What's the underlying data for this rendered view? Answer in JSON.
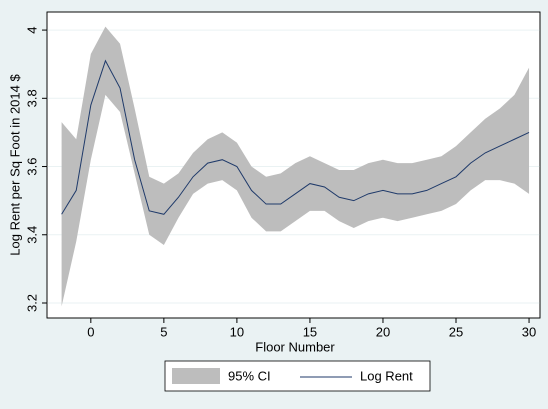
{
  "chart_data": {
    "type": "line",
    "xlabel": "Floor Number",
    "ylabel": "Log Rent per Sq Foot in 2014 $",
    "x": [
      -2,
      -1,
      0,
      1,
      2,
      3,
      4,
      5,
      6,
      7,
      8,
      9,
      10,
      11,
      12,
      13,
      14,
      15,
      16,
      17,
      18,
      19,
      20,
      21,
      22,
      23,
      24,
      25,
      26,
      27,
      28,
      29,
      30
    ],
    "series": [
      {
        "name": "95% CI",
        "type": "area",
        "color": "#bdbdbd",
        "upper": [
          3.73,
          3.68,
          3.93,
          4.01,
          3.96,
          3.77,
          3.57,
          3.55,
          3.58,
          3.64,
          3.68,
          3.7,
          3.67,
          3.6,
          3.57,
          3.58,
          3.61,
          3.63,
          3.61,
          3.59,
          3.59,
          3.61,
          3.62,
          3.61,
          3.61,
          3.62,
          3.63,
          3.66,
          3.7,
          3.74,
          3.77,
          3.81,
          3.89
        ],
        "lower": [
          3.19,
          3.38,
          3.62,
          3.81,
          3.76,
          3.58,
          3.4,
          3.37,
          3.45,
          3.52,
          3.55,
          3.56,
          3.53,
          3.45,
          3.41,
          3.41,
          3.44,
          3.47,
          3.47,
          3.44,
          3.42,
          3.44,
          3.45,
          3.44,
          3.45,
          3.46,
          3.47,
          3.49,
          3.53,
          3.56,
          3.56,
          3.55,
          3.52
        ]
      },
      {
        "name": "Log Rent",
        "color": "#1f3a6a",
        "values": [
          3.46,
          3.53,
          3.78,
          3.91,
          3.83,
          3.62,
          3.47,
          3.46,
          3.51,
          3.57,
          3.61,
          3.62,
          3.6,
          3.53,
          3.49,
          3.49,
          3.52,
          3.55,
          3.54,
          3.51,
          3.5,
          3.52,
          3.53,
          3.52,
          3.52,
          3.53,
          3.55,
          3.57,
          3.61,
          3.64,
          3.66,
          3.68,
          3.7
        ]
      }
    ],
    "xlim": [
      -3,
      30.75
    ],
    "ylim": [
      3.156,
      4.053
    ],
    "xticks": [
      0,
      5,
      10,
      15,
      20,
      25,
      30
    ],
    "yticks": [
      {
        "value": 3.2,
        "label": "3.2"
      },
      {
        "value": 3.4,
        "label": "3.4"
      },
      {
        "value": 3.6,
        "label": "3.6"
      },
      {
        "value": 3.8,
        "label": "3.8"
      },
      4
    ],
    "grid": true
  }
}
